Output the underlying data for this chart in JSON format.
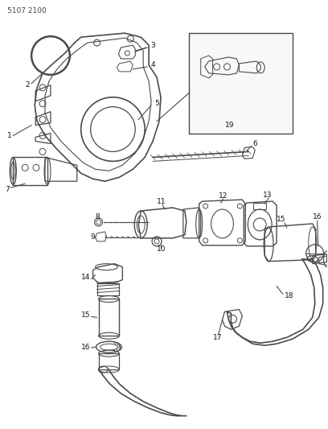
{
  "title": "5107 2100",
  "bg_color": "#ffffff",
  "lc": "#4a4a4a",
  "lc2": "#333333",
  "fig_width": 4.08,
  "fig_height": 5.33,
  "dpi": 100
}
